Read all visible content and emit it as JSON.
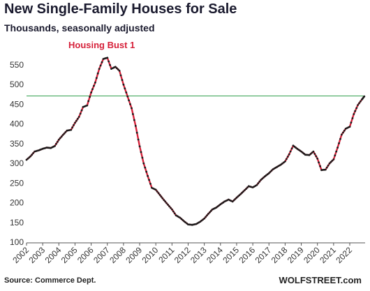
{
  "chart_data": {
    "type": "line",
    "title": "New Single-Family Houses for Sale",
    "subtitle": "Thousands, seasonally adjusted",
    "source": "Source: Commerce Dept.",
    "watermark": "WOLFSTREET.com",
    "annotation": "Housing Bust 1",
    "ylim": [
      100,
      580
    ],
    "yticks": [
      100,
      150,
      200,
      250,
      300,
      350,
      400,
      450,
      500,
      550
    ],
    "xlim": [
      2002.0,
      2022.95
    ],
    "xticks": [
      "2002",
      "2003",
      "2004",
      "2005",
      "2006",
      "2007",
      "2008",
      "2009",
      "2010",
      "2011",
      "2012",
      "2013",
      "2014",
      "2015",
      "2016",
      "2017",
      "2018",
      "2019",
      "2020",
      "2021",
      "2022"
    ],
    "reference_line": 471,
    "grid": false,
    "series": [
      {
        "color": "#d6213a",
        "marker_color": "#1a1a1a",
        "x": [
          2002.0,
          2002.25,
          2002.5,
          2002.75,
          2003.0,
          2003.25,
          2003.5,
          2003.75,
          2004.0,
          2004.25,
          2004.5,
          2004.75,
          2005.0,
          2005.25,
          2005.5,
          2005.75,
          2006.0,
          2006.25,
          2006.5,
          2006.75,
          2007.0,
          2007.25,
          2007.5,
          2007.75,
          2008.0,
          2008.25,
          2008.5,
          2008.75,
          2009.0,
          2009.25,
          2009.5,
          2009.75,
          2010.0,
          2010.25,
          2010.5,
          2010.75,
          2011.0,
          2011.25,
          2011.5,
          2011.75,
          2012.0,
          2012.25,
          2012.5,
          2012.75,
          2013.0,
          2013.25,
          2013.5,
          2013.75,
          2014.0,
          2014.25,
          2014.5,
          2014.75,
          2015.0,
          2015.25,
          2015.5,
          2015.75,
          2016.0,
          2016.25,
          2016.5,
          2016.75,
          2017.0,
          2017.25,
          2017.5,
          2017.75,
          2018.0,
          2018.25,
          2018.5,
          2018.75,
          2019.0,
          2019.25,
          2019.5,
          2019.75,
          2020.0,
          2020.25,
          2020.5,
          2020.75,
          2021.0,
          2021.25,
          2021.5,
          2021.75,
          2022.0,
          2022.25,
          2022.5,
          2022.75,
          2022.9
        ],
        "values": [
          309,
          318,
          330,
          333,
          337,
          340,
          339,
          344,
          360,
          372,
          383,
          385,
          403,
          418,
          443,
          447,
          480,
          505,
          540,
          565,
          568,
          540,
          545,
          535,
          500,
          470,
          440,
          395,
          343,
          300,
          268,
          238,
          233,
          220,
          207,
          195,
          183,
          168,
          162,
          153,
          145,
          144,
          146,
          152,
          160,
          172,
          183,
          188,
          196,
          203,
          208,
          203,
          213,
          222,
          232,
          242,
          239,
          245,
          258,
          267,
          275,
          285,
          291,
          297,
          305,
          323,
          345,
          337,
          330,
          322,
          321,
          330,
          312,
          283,
          284,
          300,
          310,
          340,
          373,
          388,
          393,
          425,
          448,
          462,
          470
        ]
      }
    ]
  }
}
